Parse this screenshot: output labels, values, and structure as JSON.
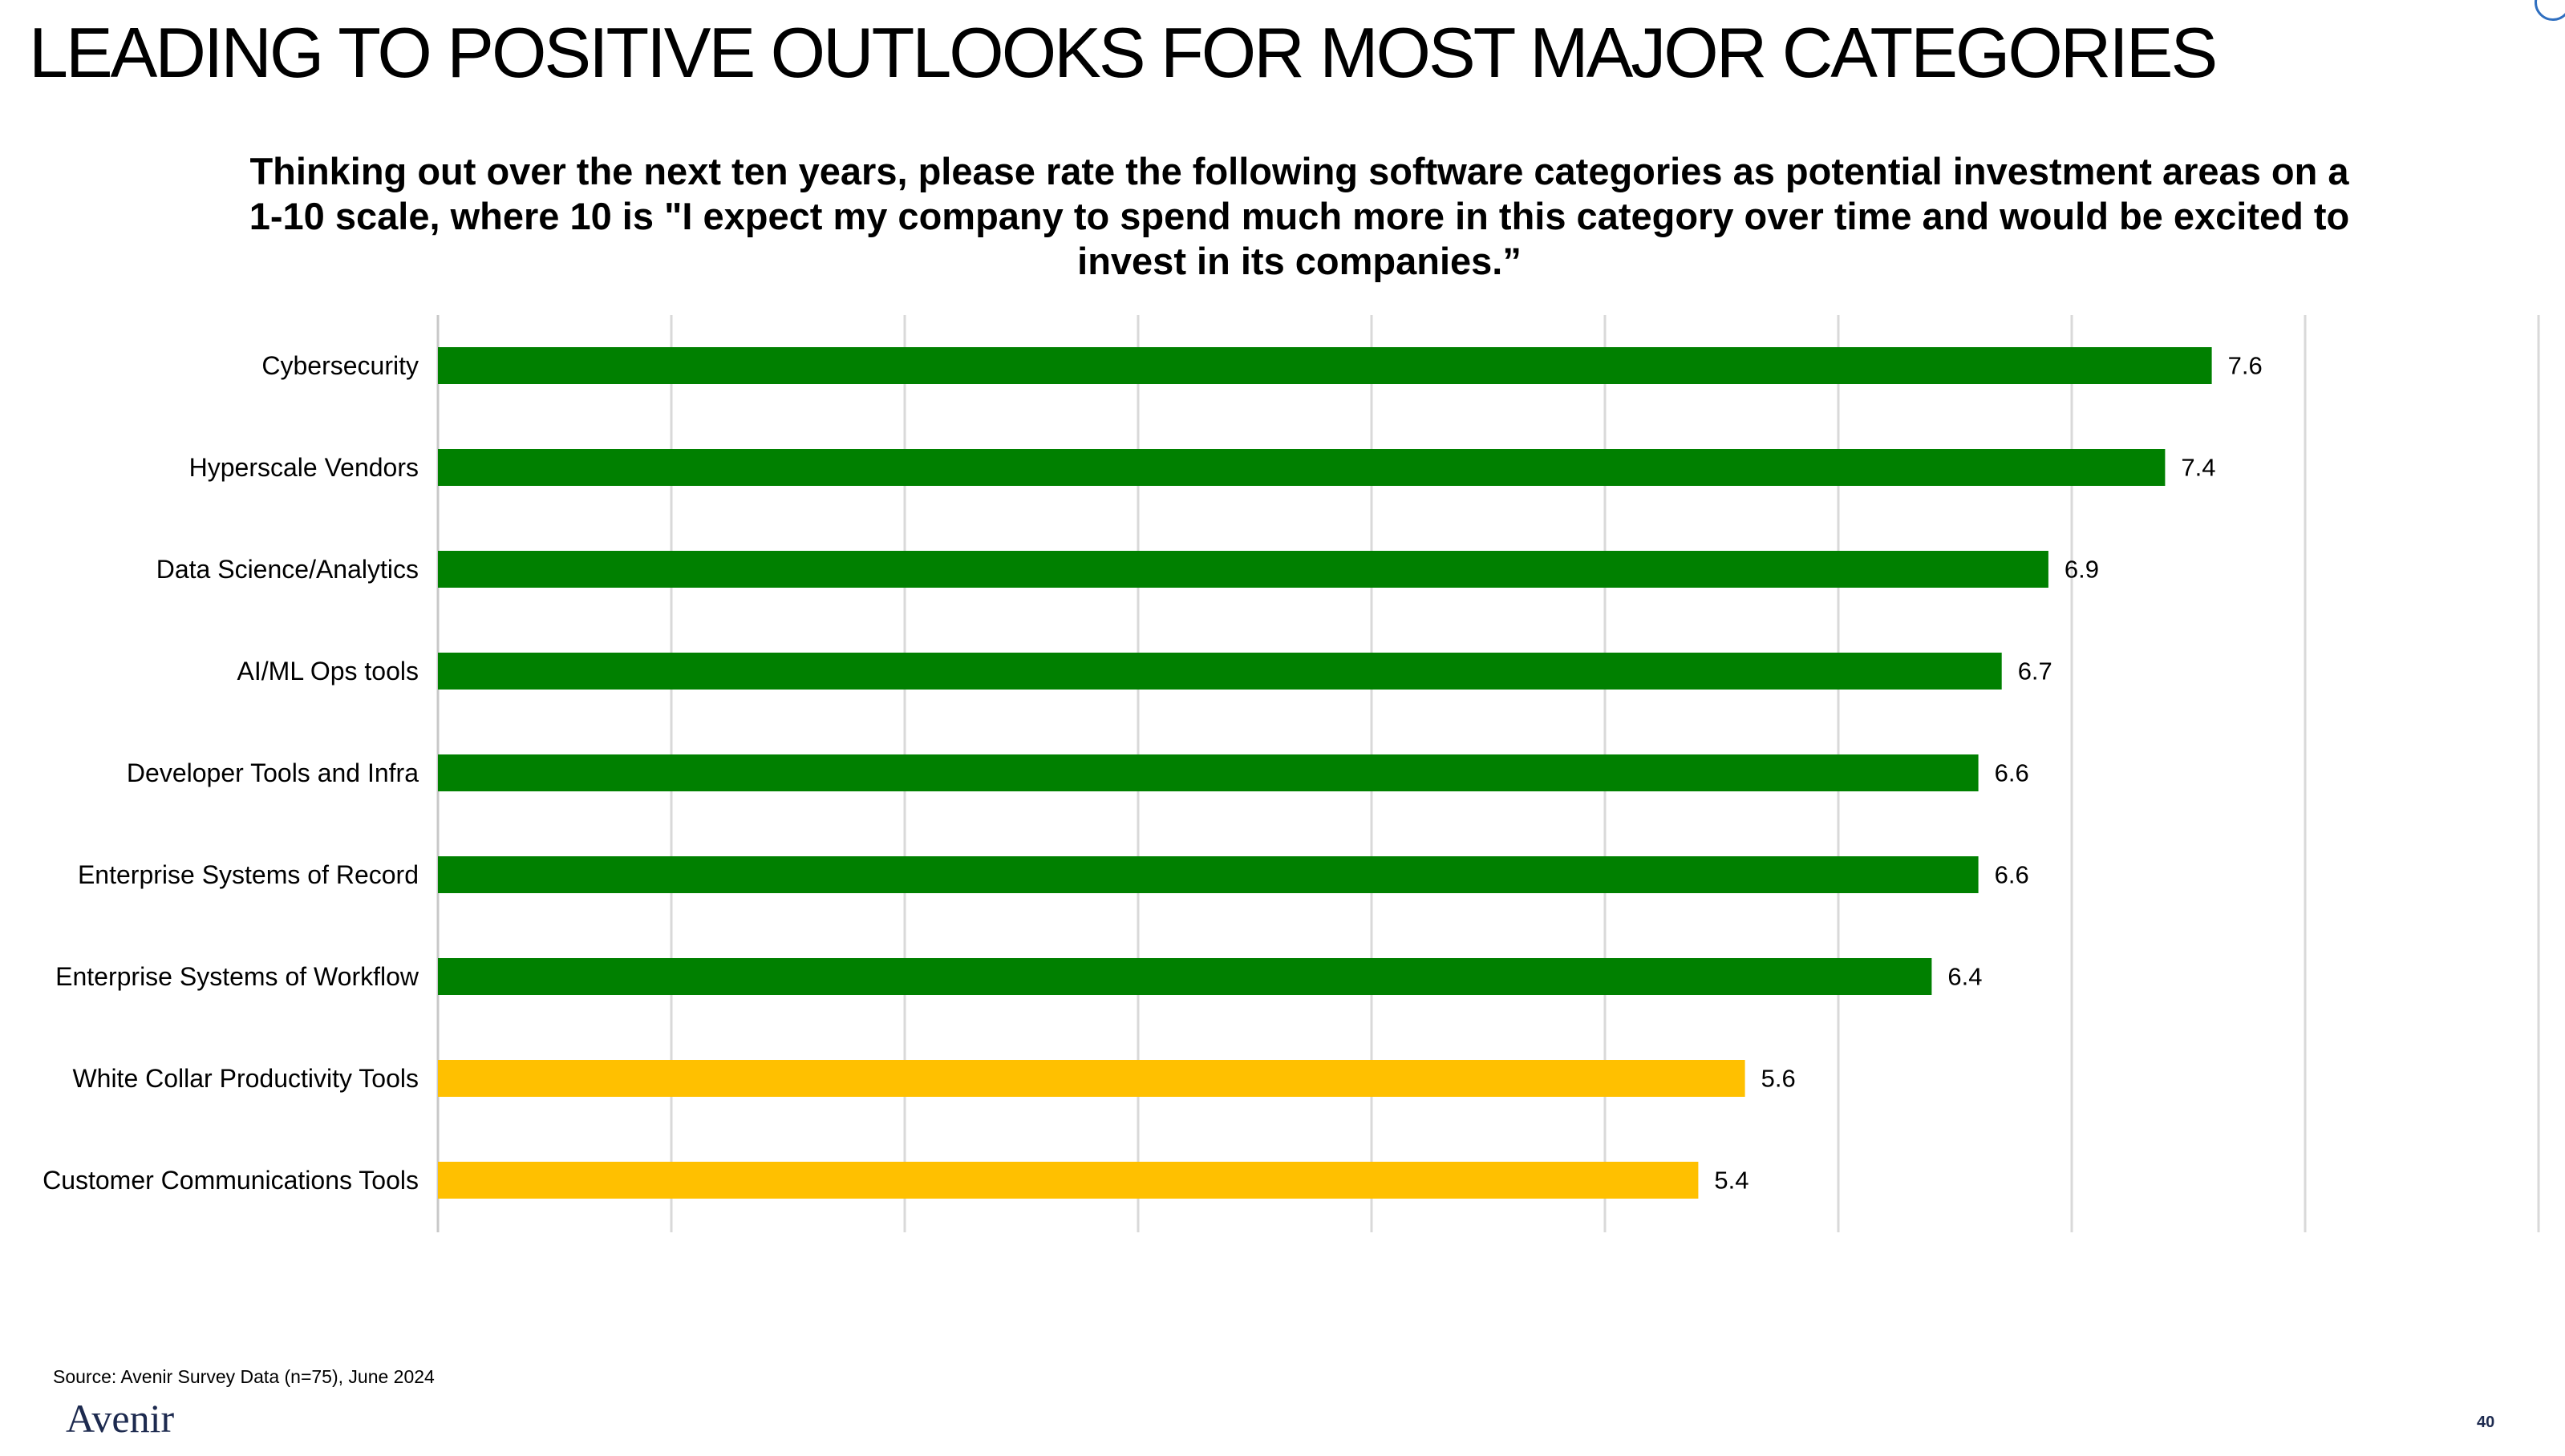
{
  "slide": {
    "title": "LEADING TO POSITIVE OUTLOOKS FOR MOST MAJOR CATEGORIES",
    "source": "Source: Avenir Survey Data (n=75), June 2024",
    "logo": "Avenir",
    "page_number": "40"
  },
  "chart_data": {
    "type": "bar",
    "orientation": "horizontal",
    "title": "Thinking out over the next ten years, please rate the following software categories as potential investment areas on a 1-10 scale, where 10 is \"I expect my company to spend much more in this category over time and would be excited to invest in its companies.”",
    "categories": [
      "Cybersecurity",
      "Hyperscale Vendors",
      "Data Science/Analytics",
      "AI/ML Ops tools",
      "Developer Tools and Infra",
      "Enterprise Systems of Record",
      "Enterprise Systems of Workflow",
      "White Collar Productivity Tools",
      "Customer Communications Tools"
    ],
    "values": [
      7.6,
      7.4,
      6.9,
      6.7,
      6.6,
      6.6,
      6.4,
      5.6,
      5.4
    ],
    "value_labels": [
      "7.6",
      "7.4",
      "6.9",
      "6.7",
      "6.6",
      "6.6",
      "6.4",
      "5.6",
      "5.4"
    ],
    "bar_colors": [
      "#008000",
      "#008000",
      "#008000",
      "#008000",
      "#008000",
      "#008000",
      "#008000",
      "#ffc000",
      "#ffc000"
    ],
    "xlim": [
      0,
      9
    ],
    "x_tick_step": 1,
    "x_tick_labels_shown": false,
    "grid": true,
    "legend": "none"
  }
}
